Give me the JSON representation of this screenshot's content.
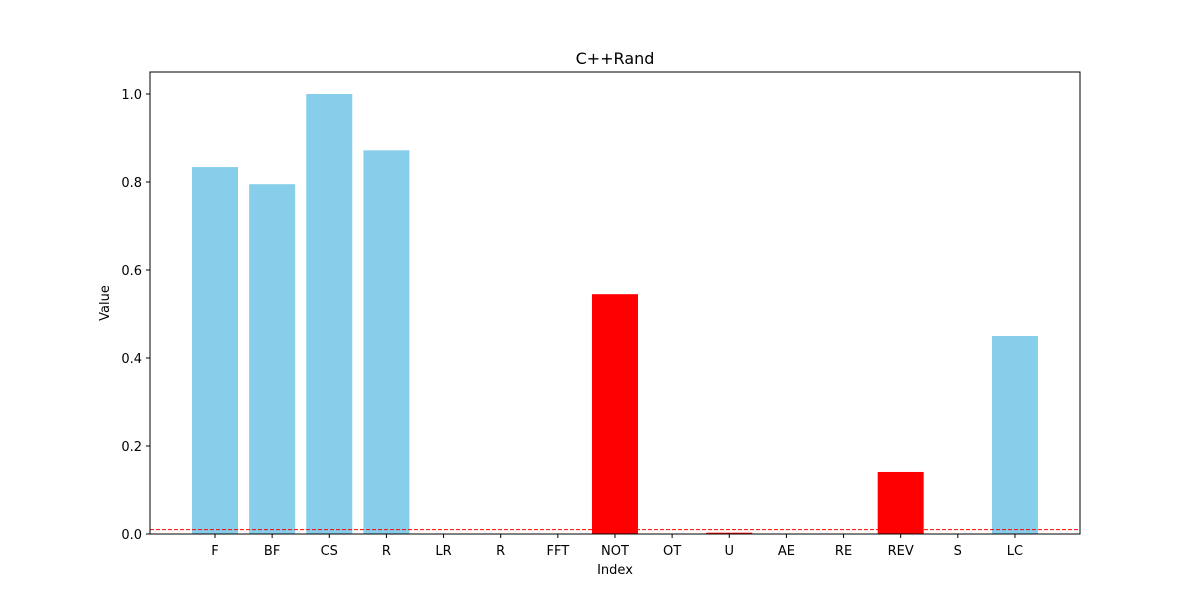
{
  "chart_data": {
    "type": "bar",
    "title": "C++Rand",
    "xlabel": "Index",
    "ylabel": "Value",
    "categories": [
      "F",
      "BF",
      "CS",
      "R",
      "LR",
      "R",
      "FFT",
      "NOT",
      "OT",
      "U",
      "AE",
      "RE",
      "REV",
      "S",
      "LC"
    ],
    "values": [
      0.834,
      0.795,
      1.0,
      0.872,
      0.0,
      0.0,
      0.0,
      0.545,
      0.0,
      0.003,
      0.0,
      0.0,
      0.141,
      0.0,
      0.45
    ],
    "bar_colors": [
      "#87ceeb",
      "#87ceeb",
      "#87ceeb",
      "#87ceeb",
      "#87ceeb",
      "#87ceeb",
      "#87ceeb",
      "#ff0000",
      "#87ceeb",
      "#ff0000",
      "#87ceeb",
      "#87ceeb",
      "#ff0000",
      "#87ceeb",
      "#87ceeb"
    ],
    "ylim": [
      0,
      1.05
    ],
    "yticks": [
      "0.0",
      "0.2",
      "0.4",
      "0.6",
      "0.8",
      "1.0"
    ],
    "threshold": {
      "value": 0.01,
      "color": "#ff0000",
      "style": "dashed"
    },
    "grid": false,
    "legend": "none"
  }
}
